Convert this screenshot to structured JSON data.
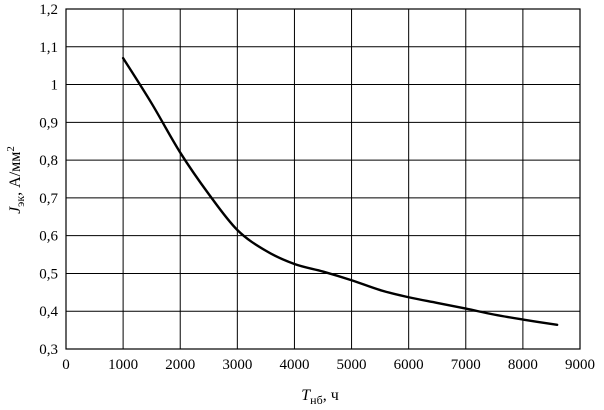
{
  "chart_data": {
    "type": "line",
    "title": "",
    "xlabel": {
      "symbol": "T",
      "subscript": "нб",
      "unit": ", ч"
    },
    "ylabel": {
      "symbol": "J",
      "subscript": "эк",
      "unit": ", А/мм",
      "superscript": "2"
    },
    "xlim": [
      0,
      9000
    ],
    "ylim": [
      0.3,
      1.2
    ],
    "grid": true,
    "x_ticks": [
      "0",
      "1000",
      "2000",
      "3000",
      "4000",
      "5000",
      "6000",
      "7000",
      "8000",
      "9000"
    ],
    "y_ticks": [
      "0,3",
      "0,4",
      "0,5",
      "0,6",
      "0,7",
      "0,8",
      "0,9",
      "1",
      "1,1",
      "1,2"
    ],
    "series": [
      {
        "x": [
          1000,
          1500,
          2000,
          2500,
          3000,
          3500,
          4000,
          4500,
          5000,
          5500,
          6000,
          6500,
          7000,
          7500,
          8000,
          8600
        ],
        "y": [
          1.07,
          0.95,
          0.82,
          0.71,
          0.615,
          0.56,
          0.525,
          0.505,
          0.482,
          0.456,
          0.437,
          0.422,
          0.407,
          0.391,
          0.378,
          0.364
        ]
      }
    ]
  }
}
